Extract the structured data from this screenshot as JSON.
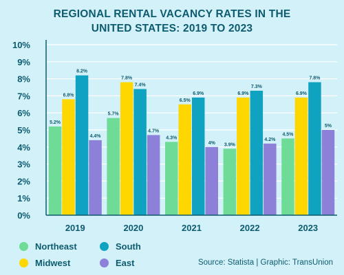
{
  "title_line1": "REGIONAL RENTAL VACANCY RATES IN THE",
  "title_line2": "UNITED STATES: 2019 TO 2023",
  "source": "Source: Statista | Graphic: TransUnion",
  "colors": {
    "background": "#d3f1f9",
    "text": "#0d5b6e",
    "axis": "#0d5b6e",
    "grid": "#ffffff"
  },
  "chart_data": {
    "type": "bar",
    "categories": [
      "2019",
      "2020",
      "2021",
      "2022",
      "2023"
    ],
    "series": [
      {
        "name": "Northeast",
        "color": "#6edb97",
        "values": [
          5.2,
          5.7,
          4.3,
          3.9,
          4.5
        ],
        "labels": [
          "5.2%",
          "5.7%",
          "4.3%",
          "3.9%",
          "4.5%"
        ]
      },
      {
        "name": "Midwest",
        "color": "#fed700",
        "values": [
          6.8,
          7.8,
          6.5,
          6.9,
          6.9
        ],
        "labels": [
          "6.8%",
          "7.8%",
          "6.5%",
          "6.9%",
          "6.9%"
        ]
      },
      {
        "name": "South",
        "color": "#10a3c1",
        "values": [
          8.2,
          7.4,
          6.9,
          7.3,
          7.8
        ],
        "labels": [
          "8.2%",
          "7.4%",
          "6.9%",
          "7.3%",
          "7.8%"
        ]
      },
      {
        "name": "East",
        "color": "#8d80d9",
        "values": [
          4.4,
          4.7,
          4.0,
          4.2,
          5.0
        ],
        "labels": [
          "4.4%",
          "4.7%",
          "4%",
          "4.2%",
          "5%"
        ]
      }
    ],
    "yticks": [
      "0%",
      "1%",
      "2%",
      "3%",
      "4%",
      "5%",
      "6%",
      "7%",
      "8%",
      "9%",
      "10%"
    ],
    "ylim": [
      0,
      10
    ],
    "grid": true,
    "legend": "bottom-left"
  }
}
